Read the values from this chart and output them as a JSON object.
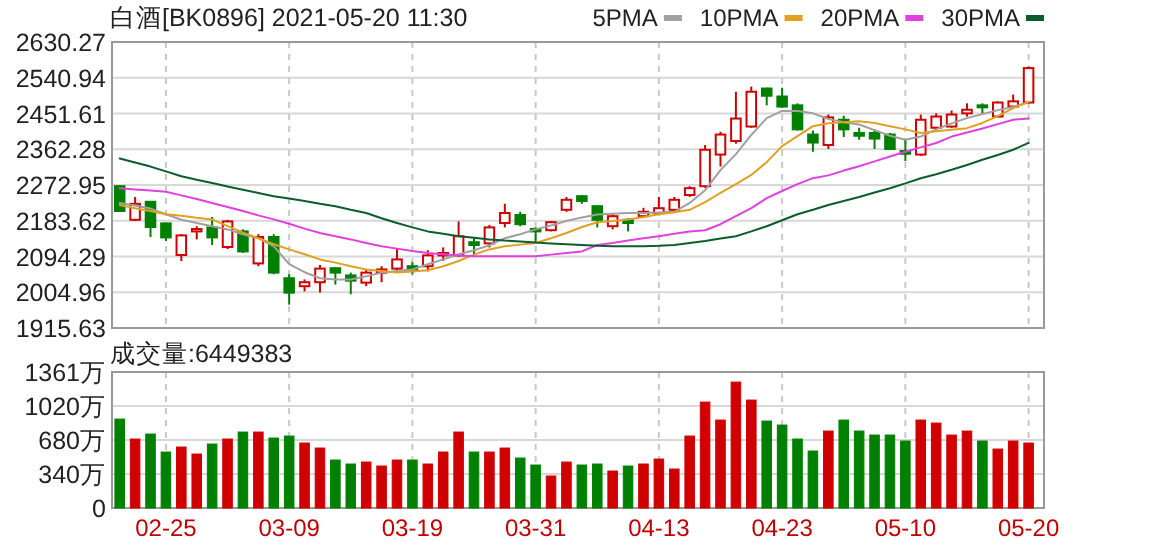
{
  "chart_data": [
    {
      "type": "candlestick",
      "title": "白酒[BK0896] 2021-05-20 11:30",
      "legend": "top right",
      "grid": true,
      "tick_labels": "y",
      "categories": [
        null,
        null,
        null,
        null,
        null,
        null,
        null,
        null,
        null,
        null,
        null,
        null,
        null,
        null,
        null,
        null,
        null,
        null,
        null,
        null,
        null,
        null,
        null,
        null,
        null,
        null,
        null,
        null,
        null,
        null,
        null,
        null,
        null,
        null,
        null,
        null,
        null,
        null,
        null,
        null,
        null,
        null,
        null,
        null,
        null,
        null,
        null,
        null,
        null,
        null,
        null,
        null,
        null,
        null,
        null,
        null,
        null,
        null,
        null,
        null
      ],
      "ylim": [
        1915.63,
        2630.27
      ],
      "yticks": [
        1915.63,
        2004.96,
        2094.29,
        2183.62,
        2272.95,
        2362.28,
        2451.61,
        2540.94,
        2630.27
      ],
      "ohlc": [
        [
          2270,
          2273,
          2206,
          2208
        ],
        [
          2186,
          2243,
          2183,
          2226
        ],
        [
          2231,
          2233,
          2143,
          2168
        ],
        [
          2177,
          2178,
          2133,
          2142
        ],
        [
          2098,
          2150,
          2083,
          2147
        ],
        [
          2157,
          2170,
          2137,
          2163
        ],
        [
          2167,
          2193,
          2123,
          2142
        ],
        [
          2118,
          2186,
          2113,
          2182
        ],
        [
          2157,
          2162,
          2103,
          2107
        ],
        [
          2077,
          2150,
          2070,
          2143
        ],
        [
          2143,
          2150,
          2050,
          2054
        ],
        [
          2040,
          2050,
          1974,
          2004
        ],
        [
          2020,
          2037,
          2007,
          2030
        ],
        [
          2030,
          2073,
          2004,
          2064
        ],
        [
          2065,
          2067,
          2024,
          2054
        ],
        [
          2047,
          2054,
          2000,
          2034
        ],
        [
          2029,
          2062,
          2020,
          2054
        ],
        [
          2054,
          2070,
          2030,
          2062
        ],
        [
          2064,
          2115,
          2054,
          2087
        ],
        [
          2070,
          2080,
          2050,
          2062
        ],
        [
          2070,
          2110,
          2057,
          2097
        ],
        [
          2097,
          2117,
          2083,
          2103
        ],
        [
          2097,
          2182,
          2093,
          2145
        ],
        [
          2130,
          2140,
          2100,
          2123
        ],
        [
          2127,
          2173,
          2117,
          2167
        ],
        [
          2178,
          2226,
          2167,
          2203
        ],
        [
          2198,
          2206,
          2170,
          2175
        ],
        [
          2163,
          2167,
          2127,
          2157
        ],
        [
          2160,
          2183,
          2157,
          2180
        ],
        [
          2211,
          2243,
          2206,
          2236
        ],
        [
          2245,
          2248,
          2226,
          2233
        ],
        [
          2220,
          2223,
          2167,
          2186
        ],
        [
          2170,
          2200,
          2162,
          2195
        ],
        [
          2186,
          2190,
          2157,
          2178
        ],
        [
          2195,
          2216,
          2190,
          2206
        ],
        [
          2203,
          2243,
          2200,
          2215
        ],
        [
          2211,
          2243,
          2203,
          2236
        ],
        [
          2248,
          2270,
          2243,
          2265
        ],
        [
          2270,
          2373,
          2266,
          2361
        ],
        [
          2349,
          2406,
          2319,
          2399
        ],
        [
          2383,
          2506,
          2376,
          2439
        ],
        [
          2419,
          2519,
          2416,
          2506
        ],
        [
          2514,
          2516,
          2472,
          2496
        ],
        [
          2494,
          2516,
          2466,
          2469
        ],
        [
          2472,
          2477,
          2409,
          2412
        ],
        [
          2399,
          2409,
          2356,
          2379
        ],
        [
          2373,
          2449,
          2363,
          2442
        ],
        [
          2436,
          2446,
          2393,
          2412
        ],
        [
          2403,
          2416,
          2386,
          2396
        ],
        [
          2403,
          2412,
          2363,
          2389
        ],
        [
          2399,
          2403,
          2361,
          2363
        ],
        [
          2358,
          2386,
          2333,
          2351
        ],
        [
          2349,
          2449,
          2346,
          2436
        ],
        [
          2416,
          2452,
          2412,
          2444
        ],
        [
          2419,
          2459,
          2416,
          2449
        ],
        [
          2452,
          2477,
          2444,
          2461
        ],
        [
          2472,
          2477,
          2452,
          2469
        ],
        [
          2444,
          2482,
          2442,
          2479
        ],
        [
          2469,
          2499,
          2466,
          2482
        ],
        [
          2479,
          2569,
          2476,
          2565
        ]
      ],
      "series": [
        {
          "name": "5PMA",
          "type": "line",
          "color": "#a0a0a0",
          "values": [
            2228,
            2222,
            2214,
            2200,
            2186,
            2178,
            2170,
            2162,
            2150,
            2140,
            2120,
            2075,
            2055,
            2040,
            2037,
            2037,
            2045,
            2054,
            2058,
            2062,
            2075,
            2087,
            2100,
            2110,
            2122,
            2140,
            2150,
            2162,
            2172,
            2183,
            2192,
            2199,
            2201,
            2203,
            2203,
            2204,
            2206,
            2228,
            2260,
            2310,
            2350,
            2398,
            2440,
            2458,
            2458,
            2452,
            2438,
            2430,
            2424,
            2410,
            2396,
            2386,
            2394,
            2412,
            2427,
            2440,
            2450,
            2460,
            2468,
            2480
          ]
        },
        {
          "name": "10PMA",
          "type": "line",
          "color": "#e0a020",
          "values": [
            2223,
            2215,
            2208,
            2200,
            2196,
            2191,
            2187,
            2170,
            2154,
            2140,
            2125,
            2112,
            2100,
            2087,
            2079,
            2070,
            2062,
            2058,
            2054,
            2057,
            2060,
            2070,
            2083,
            2099,
            2112,
            2120,
            2124,
            2128,
            2140,
            2153,
            2168,
            2180,
            2183,
            2187,
            2193,
            2200,
            2205,
            2211,
            2230,
            2253,
            2275,
            2298,
            2330,
            2370,
            2395,
            2420,
            2427,
            2430,
            2432,
            2428,
            2420,
            2412,
            2403,
            2407,
            2411,
            2415,
            2428,
            2445,
            2465,
            2480
          ]
        },
        {
          "name": "20PMA",
          "type": "line",
          "color": "#e040e0",
          "values": [
            2265,
            2262,
            2259,
            2256,
            2247,
            2238,
            2228,
            2218,
            2208,
            2197,
            2187,
            2176,
            2164,
            2153,
            2145,
            2137,
            2128,
            2120,
            2114,
            2108,
            2103,
            2100,
            2097,
            2095,
            2095,
            2095,
            2095,
            2095,
            2099,
            2103,
            2107,
            2123,
            2128,
            2134,
            2140,
            2145,
            2151,
            2157,
            2160,
            2175,
            2195,
            2215,
            2240,
            2258,
            2275,
            2290,
            2297,
            2309,
            2320,
            2332,
            2344,
            2356,
            2367,
            2378,
            2394,
            2404,
            2414,
            2425,
            2436,
            2439
          ]
        },
        {
          "name": "30PMA",
          "type": "line",
          "color": "#0b5d2b",
          "values": [
            2339,
            2329,
            2319,
            2307,
            2295,
            2286,
            2278,
            2269,
            2261,
            2253,
            2245,
            2239,
            2233,
            2226,
            2220,
            2211,
            2203,
            2190,
            2178,
            2167,
            2157,
            2151,
            2145,
            2141,
            2137,
            2134,
            2132,
            2129,
            2127,
            2125,
            2123,
            2121,
            2120,
            2120,
            2120,
            2121,
            2123,
            2128,
            2133,
            2139,
            2145,
            2157,
            2170,
            2185,
            2200,
            2211,
            2223,
            2233,
            2243,
            2254,
            2265,
            2277,
            2290,
            2300,
            2311,
            2323,
            2336,
            2348,
            2361,
            2378
          ]
        }
      ]
    },
    {
      "type": "bar",
      "title": "成交量:6449383",
      "grid": true,
      "categories": [
        null,
        null,
        null,
        "02-25",
        null,
        null,
        null,
        null,
        null,
        null,
        null,
        "03-09",
        null,
        null,
        null,
        null,
        null,
        null,
        null,
        "03-19",
        null,
        null,
        null,
        null,
        null,
        null,
        null,
        "03-31",
        null,
        null,
        null,
        null,
        null,
        null,
        null,
        "04-13",
        null,
        null,
        null,
        null,
        null,
        null,
        null,
        "04-23",
        null,
        null,
        null,
        null,
        null,
        null,
        null,
        "05-10",
        null,
        null,
        null,
        null,
        null,
        null,
        null,
        "05-20"
      ],
      "ylim": [
        0,
        1361
      ],
      "yticks": [
        0,
        {
          "value": 340,
          "label": "340万"
        },
        {
          "value": 680,
          "label": "680万"
        },
        {
          "value": 1020,
          "label": "1020万"
        },
        {
          "value": 1361,
          "label": "1361万"
        }
      ],
      "values": [
        890,
        690,
        740,
        560,
        610,
        540,
        640,
        690,
        760,
        760,
        700,
        720,
        650,
        600,
        480,
        440,
        460,
        420,
        480,
        480,
        440,
        560,
        760,
        560,
        560,
        600,
        500,
        430,
        320,
        460,
        430,
        440,
        370,
        420,
        440,
        490,
        390,
        720,
        1060,
        880,
        1260,
        1080,
        870,
        830,
        690,
        570,
        770,
        880,
        770,
        730,
        730,
        670,
        880,
        850,
        730,
        770,
        670,
        590,
        670,
        650
      ],
      "colors": [
        "#008000",
        "#d00000",
        "#008000",
        "#008000",
        "#d00000",
        "#d00000",
        "#008000",
        "#d00000",
        "#008000",
        "#d00000",
        "#008000",
        "#008000",
        "#d00000",
        "#d00000",
        "#008000",
        "#008000",
        "#d00000",
        "#d00000",
        "#d00000",
        "#008000",
        "#d00000",
        "#d00000",
        "#d00000",
        "#008000",
        "#d00000",
        "#d00000",
        "#008000",
        "#008000",
        "#d00000",
        "#d00000",
        "#008000",
        "#008000",
        "#d00000",
        "#008000",
        "#d00000",
        "#d00000",
        "#d00000",
        "#d00000",
        "#d00000",
        "#d00000",
        "#d00000",
        "#d00000",
        "#008000",
        "#008000",
        "#008000",
        "#008000",
        "#d00000",
        "#008000",
        "#008000",
        "#008000",
        "#008000",
        "#008000",
        "#d00000",
        "#d00000",
        "#d00000",
        "#d00000",
        "#008000",
        "#d00000",
        "#d00000",
        "#d00000"
      ]
    }
  ]
}
